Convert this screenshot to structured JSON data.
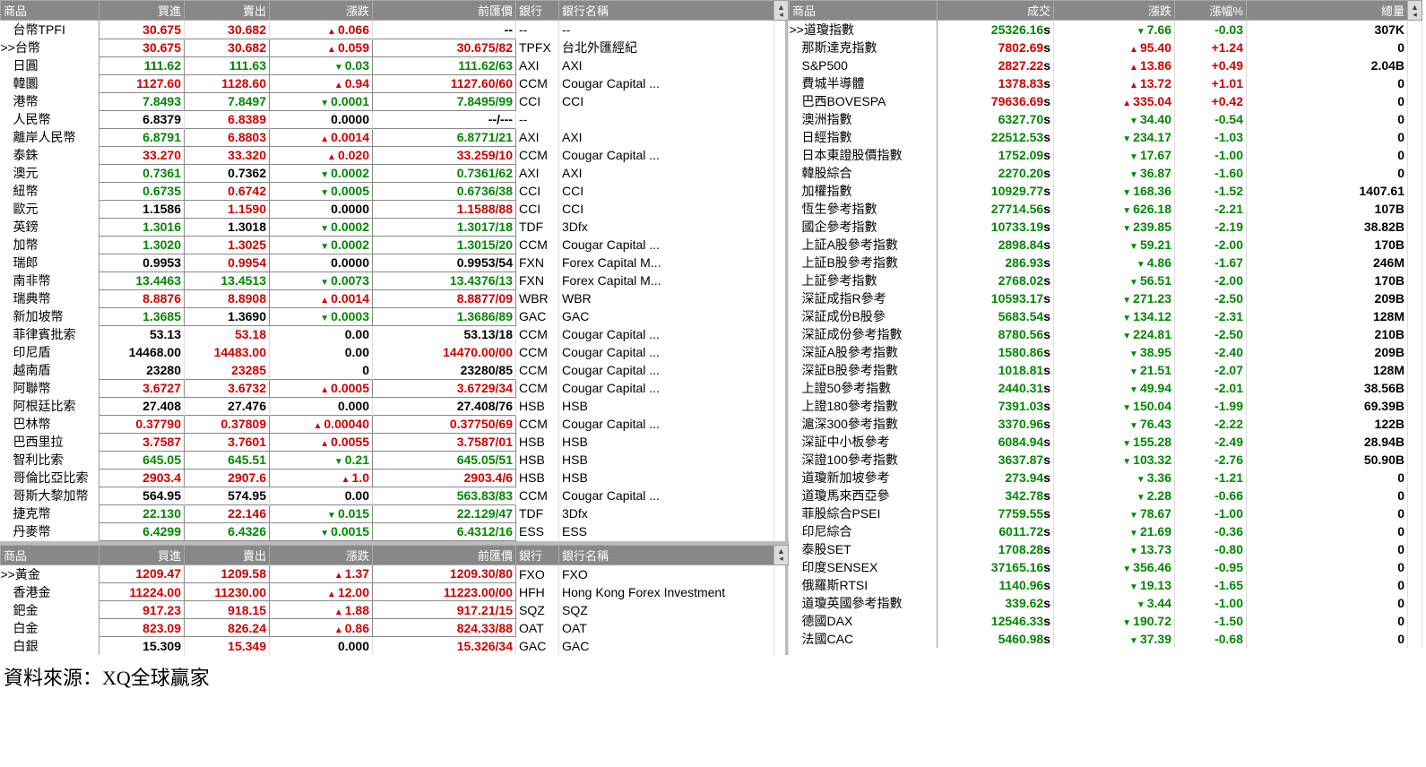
{
  "footer": "資料來源：XQ全球贏家",
  "colors": {
    "up": "#d00000",
    "down": "#008800",
    "header_bg": "#888888",
    "header_fg": "#ffffff"
  },
  "fx_headers": [
    "商品",
    "買進",
    "賣出",
    "漲跌",
    "前匯價",
    "銀行",
    "銀行名稱"
  ],
  "fx_rows": [
    {
      "n": "台幣TPFI",
      "bid": "30.675",
      "bc": "up",
      "ask": "30.682",
      "ac": "up",
      "chg": "0.066",
      "cd": "up",
      "prev": "--",
      "bank": "--",
      "bname": "--",
      "box": false
    },
    {
      "n": ">>台幣",
      "bid": "30.675",
      "bc": "up",
      "ask": "30.682",
      "ac": "up",
      "chg": "0.059",
      "cd": "up",
      "prev": "30.675/82",
      "pc": "up",
      "bank": "TPFX",
      "bname": "台北外匯經紀",
      "box": true,
      "sel": true
    },
    {
      "n": "日圓",
      "bid": "111.62",
      "bc": "dn",
      "ask": "111.63",
      "ac": "dn",
      "chg": "0.03",
      "cd": "dn",
      "prev": "111.62/63",
      "pc": "dn",
      "bank": "AXI",
      "bname": "AXI",
      "box": true
    },
    {
      "n": "韓圜",
      "bid": "1127.60",
      "bc": "up",
      "ask": "1128.60",
      "ac": "up",
      "chg": "0.94",
      "cd": "up",
      "prev": "1127.60/60",
      "pc": "up",
      "bank": "CCM",
      "bname": "Cougar Capital ...",
      "box": true
    },
    {
      "n": "港幣",
      "bid": "7.8493",
      "bc": "dn",
      "ask": "7.8497",
      "ac": "dn",
      "chg": "0.0001",
      "cd": "dn",
      "prev": "7.8495/99",
      "pc": "dn",
      "bank": "CCI",
      "bname": "CCI",
      "box": true
    },
    {
      "n": "人民幣",
      "bid": "6.8379",
      "bc": "bk",
      "ask": "6.8389",
      "ac": "up",
      "chg": "0.0000",
      "cd": "",
      "prev": "--/---",
      "pc": "bk",
      "bank": "--",
      "bname": "",
      "box": false
    },
    {
      "n": "離岸人民幣",
      "bid": "6.8791",
      "bc": "dn",
      "ask": "6.8803",
      "ac": "up",
      "chg": "0.0014",
      "cd": "up",
      "prev": "6.8771/21",
      "pc": "dn",
      "bank": "AXI",
      "bname": "AXI",
      "box": true
    },
    {
      "n": "泰銖",
      "bid": "33.270",
      "bc": "up",
      "ask": "33.320",
      "ac": "up",
      "chg": "0.020",
      "cd": "up",
      "prev": "33.259/10",
      "pc": "up",
      "bank": "CCM",
      "bname": "Cougar Capital ...",
      "box": true
    },
    {
      "n": "澳元",
      "bid": "0.7361",
      "bc": "dn",
      "ask": "0.7362",
      "ac": "bk",
      "chg": "0.0002",
      "cd": "dn",
      "prev": "0.7361/62",
      "pc": "dn",
      "bank": "AXI",
      "bname": "AXI",
      "box": true
    },
    {
      "n": "紐幣",
      "bid": "0.6735",
      "bc": "dn",
      "ask": "0.6742",
      "ac": "up",
      "chg": "0.0005",
      "cd": "dn",
      "prev": "0.6736/38",
      "pc": "dn",
      "bank": "CCI",
      "bname": "CCI",
      "box": true
    },
    {
      "n": "歐元",
      "bid": "1.1586",
      "bc": "bk",
      "ask": "1.1590",
      "ac": "up",
      "chg": "0.0000",
      "cd": "",
      "prev": "1.1588/88",
      "pc": "up",
      "bank": "CCI",
      "bname": "CCI",
      "box": true
    },
    {
      "n": "英鎊",
      "bid": "1.3016",
      "bc": "dn",
      "ask": "1.3018",
      "ac": "bk",
      "chg": "0.0002",
      "cd": "dn",
      "prev": "1.3017/18",
      "pc": "dn",
      "bank": "TDF",
      "bname": "3Dfx",
      "box": true
    },
    {
      "n": "加幣",
      "bid": "1.3020",
      "bc": "dn",
      "ask": "1.3025",
      "ac": "up",
      "chg": "0.0002",
      "cd": "dn",
      "prev": "1.3015/20",
      "pc": "dn",
      "bank": "CCM",
      "bname": "Cougar Capital ...",
      "box": true
    },
    {
      "n": "瑞郎",
      "bid": "0.9953",
      "bc": "bk",
      "ask": "0.9954",
      "ac": "up",
      "chg": "0.0000",
      "cd": "",
      "prev": "0.9953/54",
      "pc": "bk",
      "bank": "FXN",
      "bname": "Forex Capital M...",
      "box": true
    },
    {
      "n": "南非幣",
      "bid": "13.4463",
      "bc": "dn",
      "ask": "13.4513",
      "ac": "dn",
      "chg": "0.0073",
      "cd": "dn",
      "prev": "13.4376/13",
      "pc": "dn",
      "bank": "FXN",
      "bname": "Forex Capital M...",
      "box": true
    },
    {
      "n": "瑞典幣",
      "bid": "8.8876",
      "bc": "up",
      "ask": "8.8908",
      "ac": "up",
      "chg": "0.0014",
      "cd": "up",
      "prev": "8.8877/09",
      "pc": "up",
      "bank": "WBR",
      "bname": "WBR",
      "box": true
    },
    {
      "n": "新加坡幣",
      "bid": "1.3685",
      "bc": "dn",
      "ask": "1.3690",
      "ac": "bk",
      "chg": "0.0003",
      "cd": "dn",
      "prev": "1.3686/89",
      "pc": "dn",
      "bank": "GAC",
      "bname": "GAC",
      "box": true
    },
    {
      "n": "菲律賓批索",
      "bid": "53.13",
      "bc": "bk",
      "ask": "53.18",
      "ac": "up",
      "chg": "0.00",
      "cd": "",
      "prev": "53.13/18",
      "pc": "bk",
      "bank": "CCM",
      "bname": "Cougar Capital ...",
      "box": false
    },
    {
      "n": "印尼盾",
      "bid": "14468.00",
      "bc": "bk",
      "ask": "14483.00",
      "ac": "up",
      "chg": "0.00",
      "cd": "",
      "prev": "14470.00/00",
      "pc": "up",
      "bank": "CCM",
      "bname": "Cougar Capital ...",
      "box": false
    },
    {
      "n": "越南盾",
      "bid": "23280",
      "bc": "bk",
      "ask": "23285",
      "ac": "up",
      "chg": "0",
      "cd": "",
      "prev": "23280/85",
      "pc": "bk",
      "bank": "CCM",
      "bname": "Cougar Capital ...",
      "box": false
    },
    {
      "n": "阿聯幣",
      "bid": "3.6727",
      "bc": "up",
      "ask": "3.6732",
      "ac": "up",
      "chg": "0.0005",
      "cd": "up",
      "prev": "3.6729/34",
      "pc": "up",
      "bank": "CCM",
      "bname": "Cougar Capital ...",
      "box": true
    },
    {
      "n": "阿根廷比索",
      "bid": "27.408",
      "bc": "bk",
      "ask": "27.476",
      "ac": "bk",
      "chg": "0.000",
      "cd": "",
      "prev": "27.408/76",
      "pc": "bk",
      "bank": "HSB",
      "bname": "HSB",
      "box": false
    },
    {
      "n": "巴林幣",
      "bid": "0.37790",
      "bc": "up",
      "ask": "0.37809",
      "ac": "up",
      "chg": "0.00040",
      "cd": "up",
      "prev": "0.37750/69",
      "pc": "up",
      "bank": "CCM",
      "bname": "Cougar Capital ...",
      "box": true
    },
    {
      "n": "巴西里拉",
      "bid": "3.7587",
      "bc": "up",
      "ask": "3.7601",
      "ac": "up",
      "chg": "0.0055",
      "cd": "up",
      "prev": "3.7587/01",
      "pc": "up",
      "bank": "HSB",
      "bname": "HSB",
      "box": true
    },
    {
      "n": "智利比索",
      "bid": "645.05",
      "bc": "dn",
      "ask": "645.51",
      "ac": "dn",
      "chg": "0.21",
      "cd": "dn",
      "prev": "645.05/51",
      "pc": "dn",
      "bank": "HSB",
      "bname": "HSB",
      "box": true
    },
    {
      "n": "哥倫比亞比索",
      "bid": "2903.4",
      "bc": "up",
      "ask": "2907.6",
      "ac": "up",
      "chg": "1.0",
      "cd": "up",
      "prev": "2903.4/6",
      "pc": "up",
      "bank": "HSB",
      "bname": "HSB",
      "box": true
    },
    {
      "n": "哥斯大黎加幣",
      "bid": "564.95",
      "bc": "bk",
      "ask": "574.95",
      "ac": "bk",
      "chg": "0.00",
      "cd": "",
      "prev": "563.83/83",
      "pc": "dn",
      "bank": "CCM",
      "bname": "Cougar Capital ...",
      "box": false
    },
    {
      "n": "捷克幣",
      "bid": "22.130",
      "bc": "dn",
      "ask": "22.146",
      "ac": "up",
      "chg": "0.015",
      "cd": "dn",
      "prev": "22.129/47",
      "pc": "dn",
      "bank": "TDF",
      "bname": "3Dfx",
      "box": true
    },
    {
      "n": "丹麥幣",
      "bid": "6.4299",
      "bc": "dn",
      "ask": "6.4326",
      "ac": "dn",
      "chg": "0.0015",
      "cd": "dn",
      "prev": "6.4312/16",
      "pc": "dn",
      "bank": "ESS",
      "bname": "ESS",
      "box": true
    }
  ],
  "metal_headers": [
    "商品",
    "買進",
    "賣出",
    "漲跌",
    "前匯價",
    "銀行",
    "銀行名稱"
  ],
  "metal_rows": [
    {
      "n": ">>黃金",
      "bid": "1209.47",
      "bc": "up",
      "ask": "1209.58",
      "ac": "up",
      "chg": "1.37",
      "cd": "up",
      "prev": "1209.30/80",
      "pc": "up",
      "bank": "FXO",
      "bname": "FXO",
      "box": true,
      "sel": true
    },
    {
      "n": "香港金",
      "bid": "11224.00",
      "bc": "up",
      "ask": "11230.00",
      "ac": "up",
      "chg": "12.00",
      "cd": "up",
      "prev": "11223.00/00",
      "pc": "up",
      "bank": "HFH",
      "bname": "Hong Kong Forex Investment",
      "box": true
    },
    {
      "n": "鈀金",
      "bid": "917.23",
      "bc": "up",
      "ask": "918.15",
      "ac": "up",
      "chg": "1.88",
      "cd": "up",
      "prev": "917.21/15",
      "pc": "up",
      "bank": "SQZ",
      "bname": "SQZ",
      "box": true
    },
    {
      "n": "白金",
      "bid": "823.09",
      "bc": "up",
      "ask": "826.24",
      "ac": "up",
      "chg": "0.86",
      "cd": "up",
      "prev": "824.33/88",
      "pc": "up",
      "bank": "OAT",
      "bname": "OAT",
      "box": true
    },
    {
      "n": "白銀",
      "bid": "15.309",
      "bc": "bk",
      "ask": "15.349",
      "ac": "up",
      "chg": "0.000",
      "cd": "",
      "prev": "15.326/34",
      "pc": "up",
      "bank": "GAC",
      "bname": "GAC",
      "box": false
    }
  ],
  "idx_headers": [
    "商品",
    "成交",
    "漲跌",
    "漲幅%",
    "總量"
  ],
  "idx_rows": [
    {
      "n": ">>道瓊指數",
      "px": "25326.16",
      "pc": "dn",
      "chg": "7.66",
      "cd": "dn",
      "pct": "-0.03",
      "vol": "307K",
      "sel": true
    },
    {
      "n": "那斯達克指數",
      "px": "7802.69",
      "pc": "up",
      "chg": "95.40",
      "cd": "up",
      "pct": "+1.24",
      "vol": "0"
    },
    {
      "n": "S&P500",
      "px": "2827.22",
      "pc": "up",
      "chg": "13.86",
      "cd": "up",
      "pct": "+0.49",
      "vol": "2.04B"
    },
    {
      "n": "費城半導體",
      "px": "1378.83",
      "pc": "up",
      "chg": "13.72",
      "cd": "up",
      "pct": "+1.01",
      "vol": "0"
    },
    {
      "n": "巴西BOVESPA",
      "px": "79636.69",
      "pc": "up",
      "chg": "335.04",
      "cd": "up",
      "pct": "+0.42",
      "vol": "0"
    },
    {
      "n": "澳洲指數",
      "px": "6327.70",
      "pc": "dn",
      "chg": "34.40",
      "cd": "dn",
      "pct": "-0.54",
      "vol": "0"
    },
    {
      "n": "日經指數",
      "px": "22512.53",
      "pc": "dn",
      "chg": "234.17",
      "cd": "dn",
      "pct": "-1.03",
      "vol": "0"
    },
    {
      "n": "日本東證股價指數",
      "px": "1752.09",
      "pc": "dn",
      "chg": "17.67",
      "cd": "dn",
      "pct": "-1.00",
      "vol": "0"
    },
    {
      "n": "韓股綜合",
      "px": "2270.20",
      "pc": "dn",
      "chg": "36.87",
      "cd": "dn",
      "pct": "-1.60",
      "vol": "0"
    },
    {
      "n": "加權指數",
      "px": "10929.77",
      "pc": "dn",
      "chg": "168.36",
      "cd": "dn",
      "pct": "-1.52",
      "vol": "1407.61"
    },
    {
      "n": "恆生參考指數",
      "px": "27714.56",
      "pc": "dn",
      "chg": "626.18",
      "cd": "dn",
      "pct": "-2.21",
      "vol": "107B"
    },
    {
      "n": "國企參考指數",
      "px": "10733.19",
      "pc": "dn",
      "chg": "239.85",
      "cd": "dn",
      "pct": "-2.19",
      "vol": "38.82B"
    },
    {
      "n": "上証A股參考指數",
      "px": "2898.84",
      "pc": "dn",
      "chg": "59.21",
      "cd": "dn",
      "pct": "-2.00",
      "vol": "170B"
    },
    {
      "n": "上証B股參考指數",
      "px": "286.93",
      "pc": "dn",
      "chg": "4.86",
      "cd": "dn",
      "pct": "-1.67",
      "vol": "246M"
    },
    {
      "n": "上証參考指數",
      "px": "2768.02",
      "pc": "dn",
      "chg": "56.51",
      "cd": "dn",
      "pct": "-2.00",
      "vol": "170B"
    },
    {
      "n": "深証成指R參考",
      "px": "10593.17",
      "pc": "dn",
      "chg": "271.23",
      "cd": "dn",
      "pct": "-2.50",
      "vol": "209B"
    },
    {
      "n": "深証成份B股參",
      "px": "5683.54",
      "pc": "dn",
      "chg": "134.12",
      "cd": "dn",
      "pct": "-2.31",
      "vol": "128M"
    },
    {
      "n": "深証成份參考指數",
      "px": "8780.56",
      "pc": "dn",
      "chg": "224.81",
      "cd": "dn",
      "pct": "-2.50",
      "vol": "210B"
    },
    {
      "n": "深証A股參考指數",
      "px": "1580.86",
      "pc": "dn",
      "chg": "38.95",
      "cd": "dn",
      "pct": "-2.40",
      "vol": "209B"
    },
    {
      "n": "深証B股參考指數",
      "px": "1018.81",
      "pc": "dn",
      "chg": "21.51",
      "cd": "dn",
      "pct": "-2.07",
      "vol": "128M"
    },
    {
      "n": "上證50參考指數",
      "px": "2440.31",
      "pc": "dn",
      "chg": "49.94",
      "cd": "dn",
      "pct": "-2.01",
      "vol": "38.56B"
    },
    {
      "n": "上證180參考指數",
      "px": "7391.03",
      "pc": "dn",
      "chg": "150.04",
      "cd": "dn",
      "pct": "-1.99",
      "vol": "69.39B"
    },
    {
      "n": "滬深300參考指數",
      "px": "3370.96",
      "pc": "dn",
      "chg": "76.43",
      "cd": "dn",
      "pct": "-2.22",
      "vol": "122B"
    },
    {
      "n": "深証中小板參考",
      "px": "6084.94",
      "pc": "dn",
      "chg": "155.28",
      "cd": "dn",
      "pct": "-2.49",
      "vol": "28.94B"
    },
    {
      "n": "深證100參考指數",
      "px": "3637.87",
      "pc": "dn",
      "chg": "103.32",
      "cd": "dn",
      "pct": "-2.76",
      "vol": "50.90B"
    },
    {
      "n": "道瓊新加坡參考",
      "px": "273.94",
      "pc": "dn",
      "chg": "3.36",
      "cd": "dn",
      "pct": "-1.21",
      "vol": "0"
    },
    {
      "n": "道瓊馬來西亞參",
      "px": "342.78",
      "pc": "dn",
      "chg": "2.28",
      "cd": "dn",
      "pct": "-0.66",
      "vol": "0"
    },
    {
      "n": "菲股綜合PSEI",
      "px": "7759.55",
      "pc": "dn",
      "chg": "78.67",
      "cd": "dn",
      "pct": "-1.00",
      "vol": "0"
    },
    {
      "n": "印尼綜合",
      "px": "6011.72",
      "pc": "dn",
      "chg": "21.69",
      "cd": "dn",
      "pct": "-0.36",
      "vol": "0"
    },
    {
      "n": "泰股SET",
      "px": "1708.28",
      "pc": "dn",
      "chg": "13.73",
      "cd": "dn",
      "pct": "-0.80",
      "vol": "0"
    },
    {
      "n": "印度SENSEX",
      "px": "37165.16",
      "pc": "dn",
      "chg": "356.46",
      "cd": "dn",
      "pct": "-0.95",
      "vol": "0"
    },
    {
      "n": "俄羅斯RTSI",
      "px": "1140.96",
      "pc": "dn",
      "chg": "19.13",
      "cd": "dn",
      "pct": "-1.65",
      "vol": "0"
    },
    {
      "n": "道瓊英國參考指數",
      "px": "339.62",
      "pc": "dn",
      "chg": "3.44",
      "cd": "dn",
      "pct": "-1.00",
      "vol": "0"
    },
    {
      "n": "德國DAX",
      "px": "12546.33",
      "pc": "dn",
      "chg": "190.72",
      "cd": "dn",
      "pct": "-1.50",
      "vol": "0"
    },
    {
      "n": "法國CAC",
      "px": "5460.98",
      "pc": "dn",
      "chg": "37.39",
      "cd": "dn",
      "pct": "-0.68",
      "vol": "0"
    }
  ]
}
